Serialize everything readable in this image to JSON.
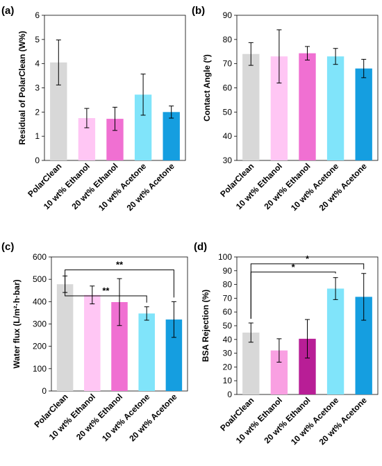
{
  "chart_data": [
    {
      "type": "bar",
      "panel_label": "(a)",
      "title": "",
      "xlabel": "",
      "ylabel": "Residual of PolarClean (W%)",
      "ylim": [
        0,
        6
      ],
      "yticks": [
        0,
        1,
        2,
        3,
        4,
        5,
        6
      ],
      "grid": false,
      "categories": [
        "PolarClean",
        "10 wt% Ethanol",
        "20 wt% Ethanol",
        "10 wt% Acetone",
        "20 wt% Acetone"
      ],
      "values": [
        4.05,
        1.75,
        1.72,
        2.72,
        2.0
      ],
      "errors": [
        0.93,
        0.4,
        0.48,
        0.85,
        0.25
      ],
      "colors": [
        "#d8d8d8",
        "#ffc6f4",
        "#f070d2",
        "#80e4fa",
        "#159ee0"
      ],
      "significance": []
    },
    {
      "type": "bar",
      "panel_label": "(b)",
      "title": "",
      "xlabel": "",
      "ylabel": "Contact Angle (º)",
      "ylim": [
        30,
        90
      ],
      "yticks": [
        30,
        40,
        50,
        60,
        70,
        80,
        90
      ],
      "grid": false,
      "categories": [
        "PolarClean",
        "10 wt% Ethanol",
        "20 wt% Ethanol",
        "10 wt% Acetone",
        "20 wt% Acetone"
      ],
      "values": [
        74,
        73,
        74.3,
        73,
        68
      ],
      "errors": [
        4.7,
        11,
        2.8,
        3.3,
        3.8
      ],
      "colors": [
        "#d8d8d8",
        "#ffc6f4",
        "#f070d2",
        "#80e4fa",
        "#159ee0"
      ],
      "significance": []
    },
    {
      "type": "bar",
      "panel_label": "(c)",
      "title": "",
      "xlabel": "",
      "ylabel": "Water flux (L/m²·h·bar)",
      "ylim": [
        0,
        600
      ],
      "yticks": [
        0,
        100,
        200,
        300,
        400,
        500,
        600
      ],
      "grid": false,
      "categories": [
        "PolarClean",
        "10 wt% Ethanol",
        "20 wt% Ethanol",
        "10 wt% Acetone",
        "20 wt% Acetone"
      ],
      "values": [
        478,
        430,
        398,
        347,
        320
      ],
      "errors": [
        37,
        40,
        105,
        30,
        80
      ],
      "colors": [
        "#d8d8d8",
        "#ffc6f4",
        "#f070d2",
        "#80e4fa",
        "#159ee0"
      ],
      "significance": [
        {
          "from": 0,
          "to": 3,
          "label": "**",
          "level": 426
        },
        {
          "from": 0,
          "to": 4,
          "label": "**",
          "level": 542
        }
      ]
    },
    {
      "type": "bar",
      "panel_label": "(d)",
      "title": "",
      "xlabel": "",
      "ylabel": "BSA Rejection (%)",
      "ylim": [
        0,
        100
      ],
      "yticks": [
        0,
        10,
        20,
        30,
        40,
        50,
        60,
        70,
        80,
        90,
        100
      ],
      "grid": false,
      "categories": [
        "PoalrClean",
        "10 wt% Ethanol",
        "20 wt% Ethanol",
        "10 wt% Acetone",
        "20 wt% Acetone"
      ],
      "values": [
        45,
        32,
        40.5,
        77,
        71
      ],
      "errors": [
        7,
        8.5,
        14,
        8,
        17
      ],
      "colors": [
        "#d8d8d8",
        "#f9a0e2",
        "#b81e96",
        "#80e4fa",
        "#159ee0"
      ],
      "significance": [
        {
          "from": 0,
          "to": 3,
          "label": "*",
          "level": 89
        },
        {
          "from": 0,
          "to": 4,
          "label": "*",
          "level": 95
        }
      ]
    }
  ]
}
